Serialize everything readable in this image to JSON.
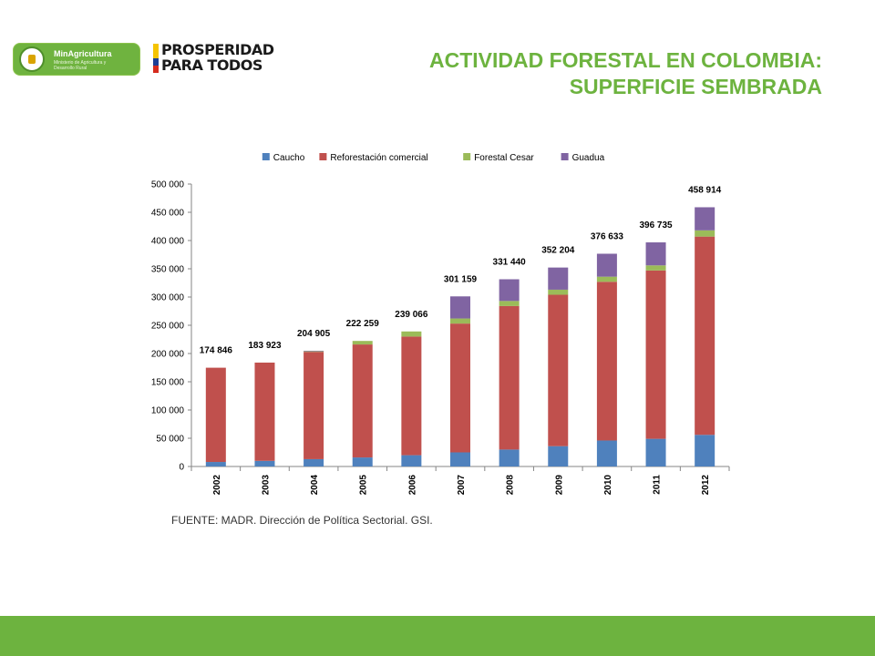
{
  "header": {
    "minagri_name": "MinAgricultura",
    "minagri_sub": "Ministerio de Agricultura y Desarrollo Rural",
    "prosperidad_line1": "PROSPERIDAD",
    "prosperidad_line2": "PARA TODOS",
    "title_line1": "ACTIVIDAD FORESTAL EN COLOMBIA:",
    "title_line2": "SUPERFICIE SEMBRADA"
  },
  "source_note": "FUENTE: MADR. Dirección de Política Sectorial. GSI.",
  "colors": {
    "accent_green": "#6db33f",
    "flag": [
      "#f5c400",
      "#1c3f95",
      "#d52b1e"
    ]
  },
  "chart_data": {
    "type": "bar",
    "stacked": true,
    "categories": [
      "2002",
      "2003",
      "2004",
      "2005",
      "2006",
      "2007",
      "2008",
      "2009",
      "2010",
      "2011",
      "2012"
    ],
    "series": [
      {
        "name": "Caucho",
        "color": "#4f81bd",
        "values": [
          8000,
          10000,
          13000,
          16000,
          20000,
          25000,
          30000,
          36000,
          46000,
          49000,
          56000
        ]
      },
      {
        "name": "Reforestación comercial",
        "color": "#c0504d",
        "values": [
          166846,
          173923,
          189905,
          200000,
          210000,
          228000,
          254000,
          268000,
          281000,
          298000,
          351000
        ]
      },
      {
        "name": "Forestal Cesar",
        "color": "#9bbb59",
        "values": [
          0,
          0,
          1000,
          6259,
          9066,
          9000,
          9000,
          9000,
          9000,
          9000,
          11000
        ]
      },
      {
        "name": "Guadua",
        "color": "#8064a2",
        "values": [
          0,
          0,
          1000,
          0,
          0,
          39159,
          38440,
          39204,
          40633,
          40735,
          40914
        ]
      }
    ],
    "totals": [
      "174 846",
      "183 923",
      "204 905",
      "222 259",
      "239 066",
      "301 159",
      "331 440",
      "352 204",
      "376 633",
      "396 735",
      "458 914"
    ],
    "ylim": [
      0,
      500000
    ],
    "yticks": [
      0,
      50000,
      100000,
      150000,
      200000,
      250000,
      300000,
      350000,
      400000,
      450000,
      500000
    ],
    "ytick_labels": [
      "0",
      "50 000",
      "100 000",
      "150 000",
      "200 000",
      "250 000",
      "300 000",
      "350 000",
      "400 000",
      "450 000",
      "500 000"
    ],
    "legend": "top",
    "grid": false
  }
}
